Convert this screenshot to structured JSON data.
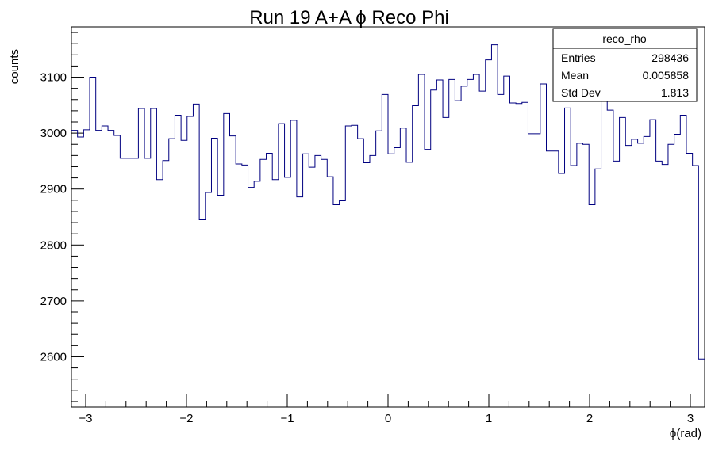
{
  "chart_data": {
    "type": "histogram",
    "title": "Run 19 A+A  ϕ Reco Phi",
    "xlabel": "ϕ(rad)",
    "ylabel": "counts",
    "xlim": [
      -3.1416,
      3.1416
    ],
    "ylim": [
      2510,
      3190
    ],
    "x_ticks": [
      {
        "value": -3,
        "label": "−3"
      },
      {
        "value": -2,
        "label": "−2"
      },
      {
        "value": -1,
        "label": "−1"
      },
      {
        "value": 0,
        "label": "0"
      },
      {
        "value": 1,
        "label": "1"
      },
      {
        "value": 2,
        "label": "2"
      },
      {
        "value": 3,
        "label": "3"
      }
    ],
    "y_ticks": [
      {
        "value": 2600,
        "label": "2600"
      },
      {
        "value": 2700,
        "label": "2700"
      },
      {
        "value": 2800,
        "label": "2800"
      },
      {
        "value": 2900,
        "label": "2900"
      },
      {
        "value": 3000,
        "label": "3000"
      },
      {
        "value": 3100,
        "label": "3100"
      }
    ],
    "line_color": "#000080",
    "bin_width": 0.0628,
    "counts": [
      3005,
      2993,
      3006,
      3100,
      3005,
      3013,
      3005,
      2996,
      2955,
      2955,
      2955,
      3044,
      2955,
      3044,
      2917,
      2951,
      2990,
      3032,
      2987,
      3030,
      3052,
      2845,
      2894,
      2991,
      2889,
      3035,
      2995,
      2945,
      2943,
      2903,
      2914,
      2953,
      2964,
      2917,
      3017,
      2921,
      3023,
      2886,
      2963,
      2939,
      2960,
      2953,
      2922,
      2872,
      2879,
      3013,
      3014,
      2990,
      2947,
      2960,
      3004,
      3069,
      2963,
      2974,
      3009,
      2948,
      3049,
      3105,
      2971,
      3077,
      3095,
      3028,
      3096,
      3058,
      3084,
      3096,
      3105,
      3075,
      3131,
      3158,
      3069,
      3102,
      3054,
      3053,
      3055,
      2999,
      2999,
      3088,
      2968,
      2968,
      2928,
      3045,
      2942,
      2982,
      2980,
      2872,
      2936,
      3140,
      3041,
      2950,
      3028,
      2978,
      2989,
      2982,
      2994,
      3024,
      2950,
      2944,
      2980,
      2998,
      3032,
      2964,
      2942,
      2596
    ],
    "stats_box": {
      "name": "reco_rho",
      "rows": [
        {
          "label": "Entries",
          "value": "298436"
        },
        {
          "label": "Mean",
          "value": "0.005858"
        },
        {
          "label": "Std Dev",
          "value": "1.813"
        }
      ]
    }
  }
}
